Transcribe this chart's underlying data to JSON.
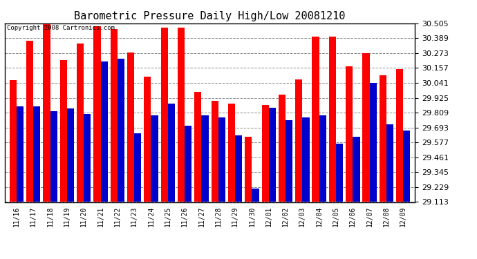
{
  "title": "Barometric Pressure Daily High/Low 20081210",
  "copyright": "Copyright 2008 Cartronics.com",
  "dates": [
    "11/16",
    "11/17",
    "11/18",
    "11/19",
    "11/20",
    "11/21",
    "11/22",
    "11/23",
    "11/24",
    "11/25",
    "11/26",
    "11/27",
    "11/28",
    "11/29",
    "11/30",
    "12/01",
    "12/02",
    "12/03",
    "12/04",
    "12/05",
    "12/06",
    "12/07",
    "12/08",
    "12/09"
  ],
  "highs": [
    30.06,
    30.37,
    30.5,
    30.22,
    30.35,
    30.48,
    30.46,
    30.28,
    30.09,
    30.47,
    30.47,
    29.97,
    29.9,
    29.88,
    29.62,
    29.87,
    29.95,
    30.07,
    30.4,
    30.4,
    30.17,
    30.27,
    30.1,
    30.15
  ],
  "lows": [
    29.86,
    29.86,
    29.82,
    29.84,
    29.8,
    30.21,
    30.23,
    29.65,
    29.79,
    29.88,
    29.71,
    29.79,
    29.77,
    29.63,
    29.22,
    29.85,
    29.75,
    29.77,
    29.79,
    29.57,
    29.62,
    30.04,
    29.72,
    29.67
  ],
  "high_color": "#ff0000",
  "low_color": "#0000cc",
  "bg_color": "#ffffff",
  "plot_bg_color": "#ffffff",
  "grid_color": "#888888",
  "ymin": 29.113,
  "ymax": 30.505,
  "yticks": [
    29.113,
    29.229,
    29.345,
    29.461,
    29.577,
    29.693,
    29.809,
    29.925,
    30.041,
    30.157,
    30.273,
    30.389,
    30.505
  ],
  "title_fontsize": 11,
  "copyright_fontsize": 6.5,
  "tick_fontsize": 7,
  "ytick_fontsize": 8
}
